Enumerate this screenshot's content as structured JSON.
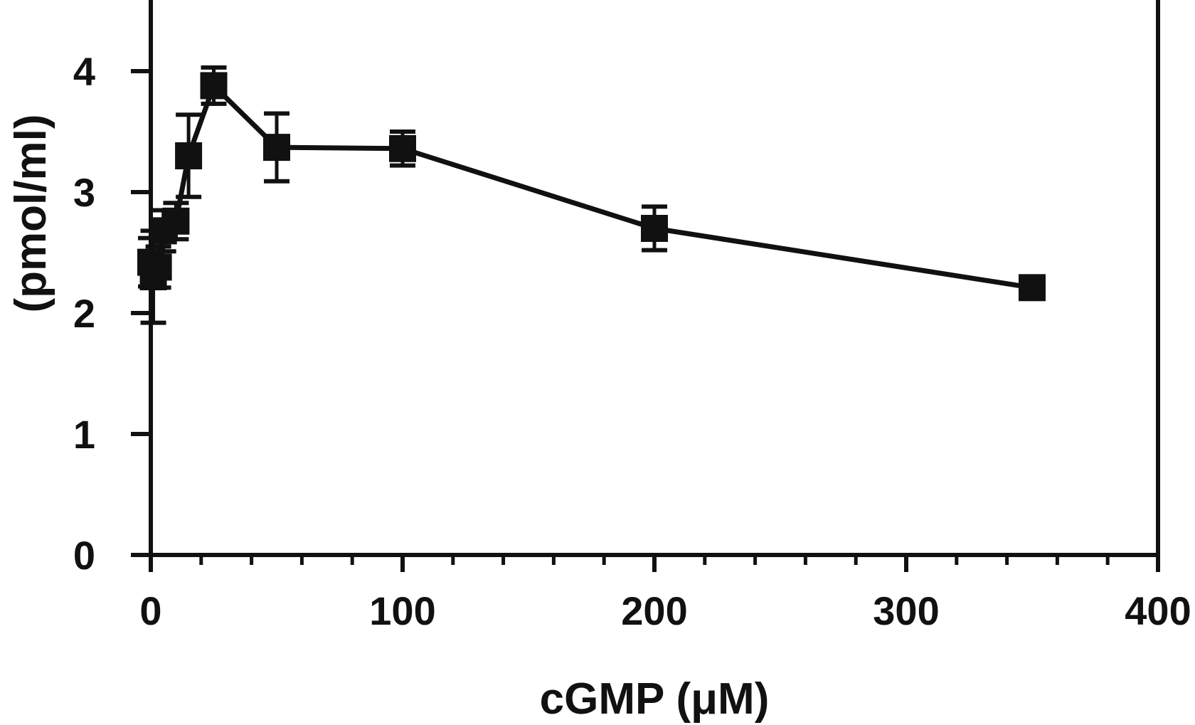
{
  "chart_data": {
    "type": "line",
    "title": "",
    "xlabel": "cGMP (μM)",
    "ylabel": "(pmol/ml)",
    "xlim": [
      0,
      400
    ],
    "ylim": [
      0,
      4.6
    ],
    "x_ticks": [
      "0",
      "100",
      "200",
      "300",
      "400"
    ],
    "y_ticks": [
      "0",
      "1",
      "2",
      "3",
      "4"
    ],
    "x_minor_step": 20,
    "grid": false,
    "legend": "none",
    "marker": "square",
    "color": "#111111",
    "series": [
      {
        "points": [
          {
            "x": 0,
            "y": 2.42,
            "err": 0.2
          },
          {
            "x": 1,
            "y": 2.3,
            "err": 0.38
          },
          {
            "x": 3,
            "y": 2.38,
            "err": 0.17
          },
          {
            "x": 5,
            "y": 2.68,
            "err": 0.17
          },
          {
            "x": 10,
            "y": 2.76,
            "err": 0.15
          },
          {
            "x": 15,
            "y": 3.3,
            "err": 0.34
          },
          {
            "x": 25,
            "y": 3.88,
            "err": 0.15
          },
          {
            "x": 50,
            "y": 3.37,
            "err": 0.28
          },
          {
            "x": 100,
            "y": 3.36,
            "err": 0.14
          },
          {
            "x": 200,
            "y": 2.7,
            "err": 0.18
          },
          {
            "x": 350,
            "y": 2.21,
            "err": 0
          }
        ]
      }
    ]
  }
}
